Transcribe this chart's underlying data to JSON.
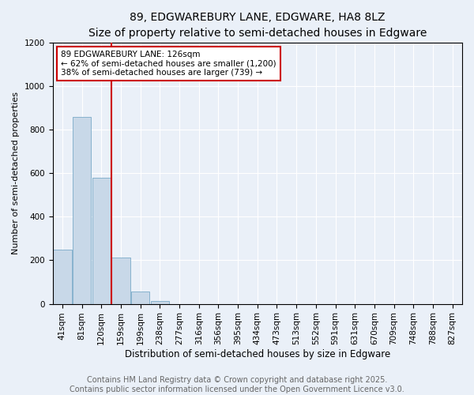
{
  "title1": "89, EDGWAREBURY LANE, EDGWARE, HA8 8LZ",
  "title2": "Size of property relative to semi-detached houses in Edgware",
  "xlabel": "Distribution of semi-detached houses by size in Edgware",
  "ylabel": "Number of semi-detached properties",
  "footer1": "Contains HM Land Registry data © Crown copyright and database right 2025.",
  "footer2": "Contains public sector information licensed under the Open Government Licence v3.0.",
  "bar_labels": [
    "41sqm",
    "81sqm",
    "120sqm",
    "159sqm",
    "199sqm",
    "238sqm",
    "277sqm",
    "316sqm",
    "356sqm",
    "395sqm",
    "434sqm",
    "473sqm",
    "513sqm",
    "552sqm",
    "591sqm",
    "631sqm",
    "670sqm",
    "709sqm",
    "748sqm",
    "788sqm",
    "827sqm"
  ],
  "bar_values": [
    248,
    858,
    578,
    213,
    55,
    12,
    0,
    0,
    0,
    0,
    0,
    0,
    0,
    0,
    0,
    0,
    0,
    0,
    0,
    0,
    0
  ],
  "bar_color": "#c8d8e8",
  "bar_edge_color": "#7aaac8",
  "highlight_index": 2,
  "highlight_line_color": "#cc0000",
  "ylim": [
    0,
    1200
  ],
  "yticks": [
    0,
    200,
    400,
    600,
    800,
    1000,
    1200
  ],
  "annotation_text": "89 EDGWAREBURY LANE: 126sqm\n← 62% of semi-detached houses are smaller (1,200)\n38% of semi-detached houses are larger (739) →",
  "annotation_box_color": "#ffffff",
  "annotation_box_edge": "#cc0000",
  "bg_color": "#eaf0f8",
  "plot_bg_color": "#eaf0f8",
  "grid_color": "#ffffff",
  "title1_fontsize": 10,
  "title2_fontsize": 9,
  "xlabel_fontsize": 8.5,
  "ylabel_fontsize": 8,
  "tick_fontsize": 7.5,
  "footer_fontsize": 7
}
